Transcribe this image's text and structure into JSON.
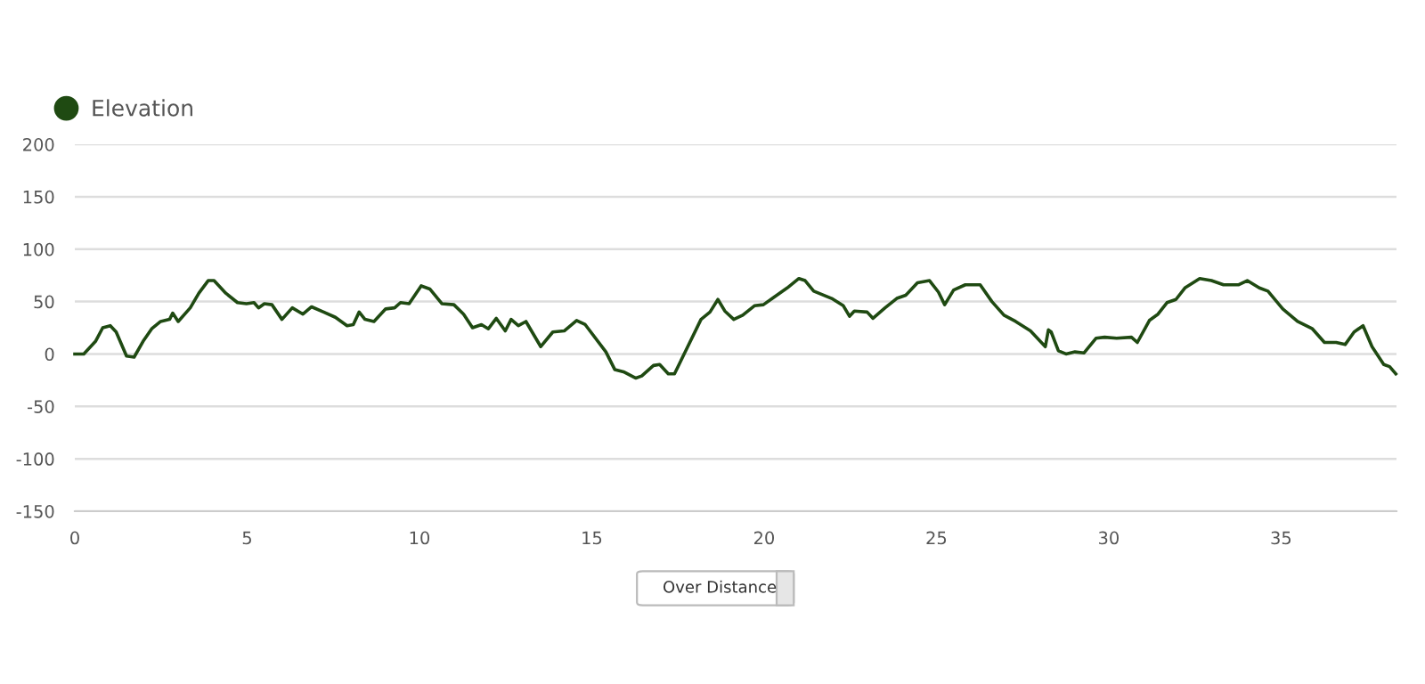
{
  "chart_data": {
    "type": "line",
    "x": [
      0,
      0.26,
      0.6,
      0.81,
      1.03,
      1.2,
      1.5,
      1.72,
      1.98,
      2.23,
      2.49,
      2.75,
      2.84,
      3.0,
      3.35,
      3.6,
      3.87,
      4.04,
      4.38,
      4.72,
      4.98,
      5.2,
      5.33,
      5.5,
      5.72,
      6.01,
      6.31,
      6.62,
      6.87,
      7.22,
      7.56,
      7.9,
      8.08,
      8.25,
      8.42,
      8.68,
      9.02,
      9.28,
      9.45,
      9.7,
      10.05,
      10.3,
      10.65,
      11.0,
      11.28,
      11.54,
      11.8,
      12.0,
      12.23,
      12.49,
      12.66,
      12.87,
      13.09,
      13.52,
      13.87,
      14.2,
      14.56,
      14.81,
      15.41,
      15.67,
      15.92,
      16.28,
      16.45,
      16.79,
      16.97,
      17.22,
      17.4,
      17.74,
      18.17,
      18.43,
      18.66,
      18.86,
      19.12,
      19.38,
      19.72,
      19.98,
      20.24,
      20.67,
      21.01,
      21.19,
      21.44,
      21.96,
      22.3,
      22.48,
      22.62,
      22.99,
      23.16,
      23.51,
      23.85,
      24.11,
      24.45,
      24.8,
      25.06,
      25.24,
      25.5,
      25.84,
      26.27,
      26.61,
      26.96,
      27.3,
      27.73,
      28.16,
      28.25,
      28.33,
      28.54,
      28.76,
      29.02,
      29.28,
      29.63,
      29.88,
      30.23,
      30.66,
      30.83,
      31.18,
      31.43,
      31.69,
      31.95,
      32.21,
      32.64,
      32.98,
      33.33,
      33.76,
      34.02,
      34.37,
      34.62,
      35.05,
      35.48,
      35.91,
      36.26,
      36.6,
      36.86,
      37.12,
      37.38,
      37.64,
      37.98,
      38.15,
      38.33
    ],
    "series": [
      {
        "name": "Elevation",
        "color": "#1f4a12",
        "values": [
          0,
          0,
          12,
          25,
          27,
          21,
          -2,
          -3,
          12,
          24,
          31,
          33,
          39,
          31,
          44,
          58,
          70,
          70,
          58,
          49,
          48,
          49,
          44,
          48,
          47,
          33,
          44,
          38,
          45,
          40,
          35,
          27,
          28,
          40,
          33,
          31,
          43,
          44,
          49,
          48,
          65,
          62,
          48,
          47,
          38,
          25,
          28,
          24,
          34,
          22,
          33,
          27,
          31,
          7,
          21,
          22,
          32,
          28,
          2,
          -15,
          -17,
          -23,
          -21,
          -11,
          -10,
          -19,
          -19,
          4,
          33,
          40,
          52,
          41,
          33,
          37,
          46,
          47,
          53,
          63,
          72,
          70,
          60,
          53,
          46,
          36,
          41,
          40,
          34,
          44,
          53,
          56,
          68,
          70,
          59,
          47,
          61,
          66,
          66,
          50,
          37,
          31,
          22,
          7,
          23,
          21,
          3,
          0,
          2,
          1,
          15,
          16,
          15,
          16,
          11,
          32,
          38,
          49,
          52,
          63,
          72,
          70,
          66,
          66,
          70,
          63,
          60,
          43,
          31,
          24,
          11,
          11,
          9,
          21,
          27,
          7,
          -10,
          -12,
          -19
        ]
      }
    ],
    "xlim": [
      0,
      38.35
    ],
    "xticks": [
      0,
      5,
      10,
      15,
      20,
      25,
      30,
      35
    ],
    "ylim": [
      -150,
      200
    ],
    "yticks": [
      -150,
      -100,
      -50,
      0,
      50,
      100,
      150,
      200
    ],
    "grid": "y",
    "legend": "top left",
    "marker": "none",
    "line_style": "solid",
    "annotations": [
      "Over Distance"
    ]
  }
}
